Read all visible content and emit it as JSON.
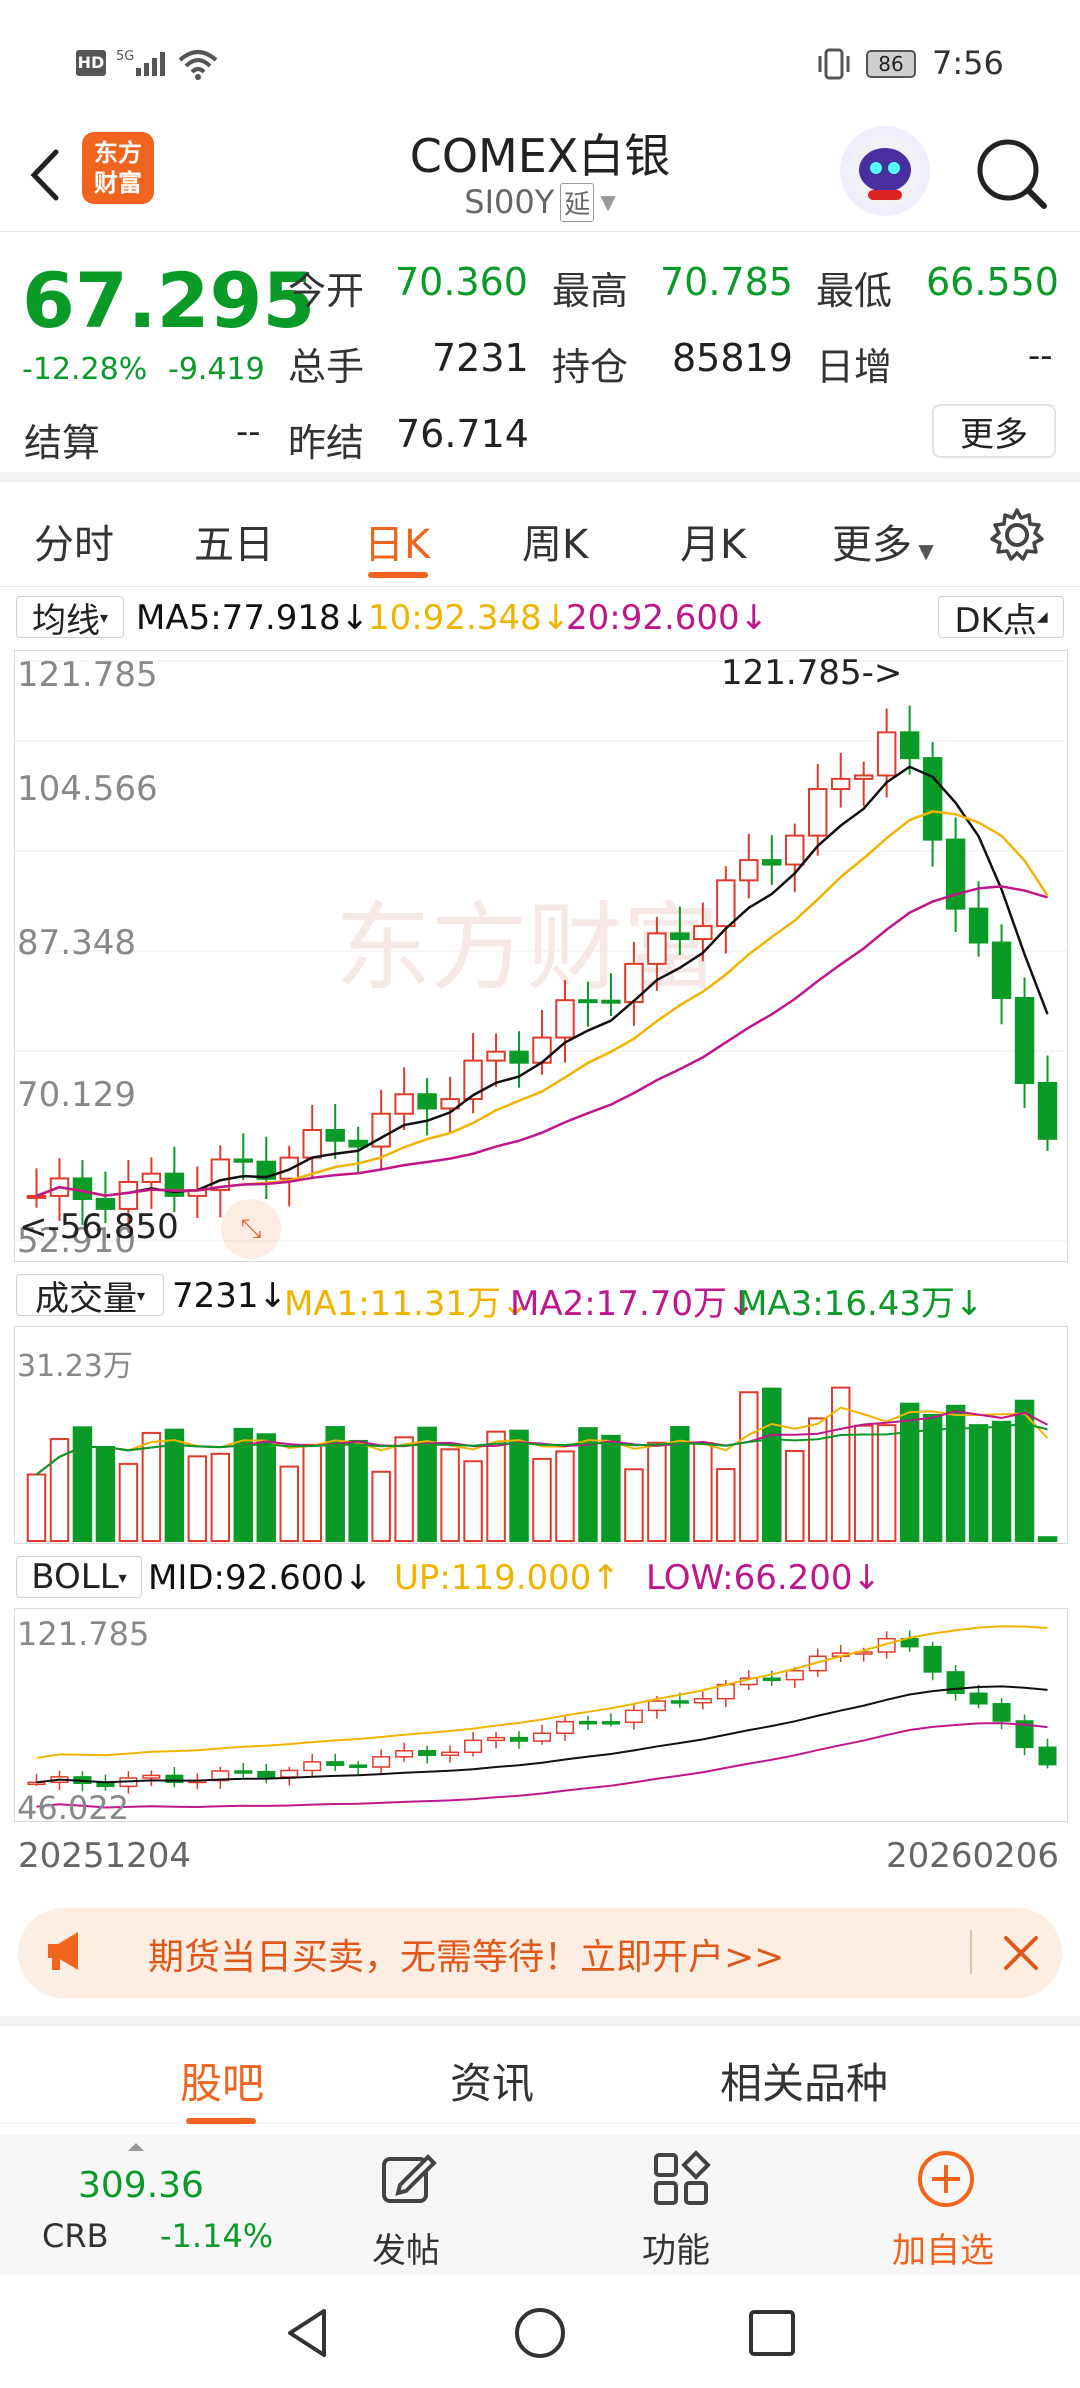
{
  "status_bar": {
    "left_icons": "HD 5G",
    "battery": "86",
    "time": "7:56"
  },
  "header": {
    "logo_line1": "东方",
    "logo_line2": "财富",
    "title": "COMEX白银",
    "code": "SI00Y",
    "delay_badge": "延"
  },
  "quote": {
    "price": "67.295",
    "change_pct": "-12.28%",
    "change": "-9.419",
    "open_label": "今开",
    "open": "70.360",
    "high_label": "最高",
    "high": "70.785",
    "low_label": "最低",
    "low": "66.550",
    "volume_label": "总手",
    "volume": "7231",
    "oi_label": "持仓",
    "oi": "85819",
    "daily_inc_label": "日增",
    "daily_inc": "--",
    "settle_label": "结算",
    "settle": "--",
    "prev_settle_label": "昨结",
    "prev_settle": "76.714",
    "more_label": "更多"
  },
  "tabs": [
    "分时",
    "五日",
    "日K",
    "周K",
    "月K",
    "更多"
  ],
  "active_tab": 2,
  "ma_bar": {
    "selector": "均线",
    "ma5": "MA5:77.918↓",
    "ma10": "10:92.348↓",
    "ma20": "20:92.600↓",
    "dk": "DK点"
  },
  "kline": {
    "y_labels": [
      "121.785",
      "104.566",
      "87.348",
      "70.129",
      "52.910"
    ],
    "max_annot": "121.785->",
    "min_annot": "<-56.850",
    "watermark": "东方财富"
  },
  "vol_bar": {
    "selector": "成交量",
    "value": "7231↓",
    "ma1": "MA1:11.31万↓",
    "ma2": "MA2:17.70万↓",
    "ma3": "MA3:16.43万↓",
    "y_top": "31.23万"
  },
  "boll_bar": {
    "selector": "BOLL",
    "mid": "MID:92.600↓",
    "up": "UP:119.000↑",
    "low": "LOW:66.200↓",
    "y_top": "121.785",
    "y_bottom": "46.022"
  },
  "dates": {
    "start": "20251204",
    "end": "20260206"
  },
  "ad": {
    "text": "期货当日买卖，无需等待！立即开户>>"
  },
  "subtabs": [
    "股吧",
    "资讯",
    "相关品种"
  ],
  "bottom": {
    "crb_value": "309.36",
    "crb_label": "CRB",
    "crb_change": "-1.14%",
    "post": "发帖",
    "func": "功能",
    "add": "加自选"
  },
  "colors": {
    "up": "#e03a2a",
    "down": "#0a9a27",
    "accent": "#f0641e",
    "ma5": "#111111",
    "ma10": "#f0b400",
    "ma20": "#c0168c"
  }
}
